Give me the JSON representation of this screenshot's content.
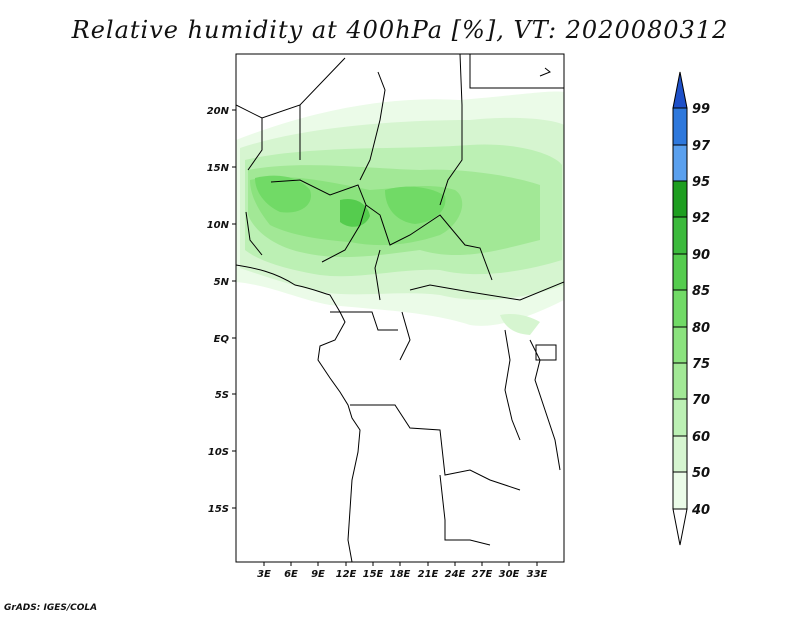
{
  "title": "Relative humidity at 400hPa [%], VT: 2020080312",
  "credit": "GrADS: IGES/COLA",
  "map": {
    "lon_range": [
      0,
      36
    ],
    "lat_range": [
      -20,
      25
    ],
    "lat_ticks": [
      "20N",
      "15N",
      "10N",
      "5N",
      "EQ",
      "5S",
      "10S",
      "15S"
    ],
    "lon_ticks": [
      "3E",
      "6E",
      "9E",
      "12E",
      "15E",
      "18E",
      "21E",
      "24E",
      "27E",
      "30E",
      "33E"
    ]
  },
  "colorbar": {
    "levels": [
      "40",
      "50",
      "60",
      "70",
      "75",
      "80",
      "85",
      "90",
      "92",
      "95",
      "97",
      "99"
    ],
    "colors": [
      "#ebfbe8",
      "#d6f5d0",
      "#bcf0b4",
      "#a2e896",
      "#8be27e",
      "#71da66",
      "#55cc4e",
      "#3cba3c",
      "#1e9e20",
      "#5aa0ee",
      "#2e78dc",
      "#1e50c8"
    ]
  }
}
